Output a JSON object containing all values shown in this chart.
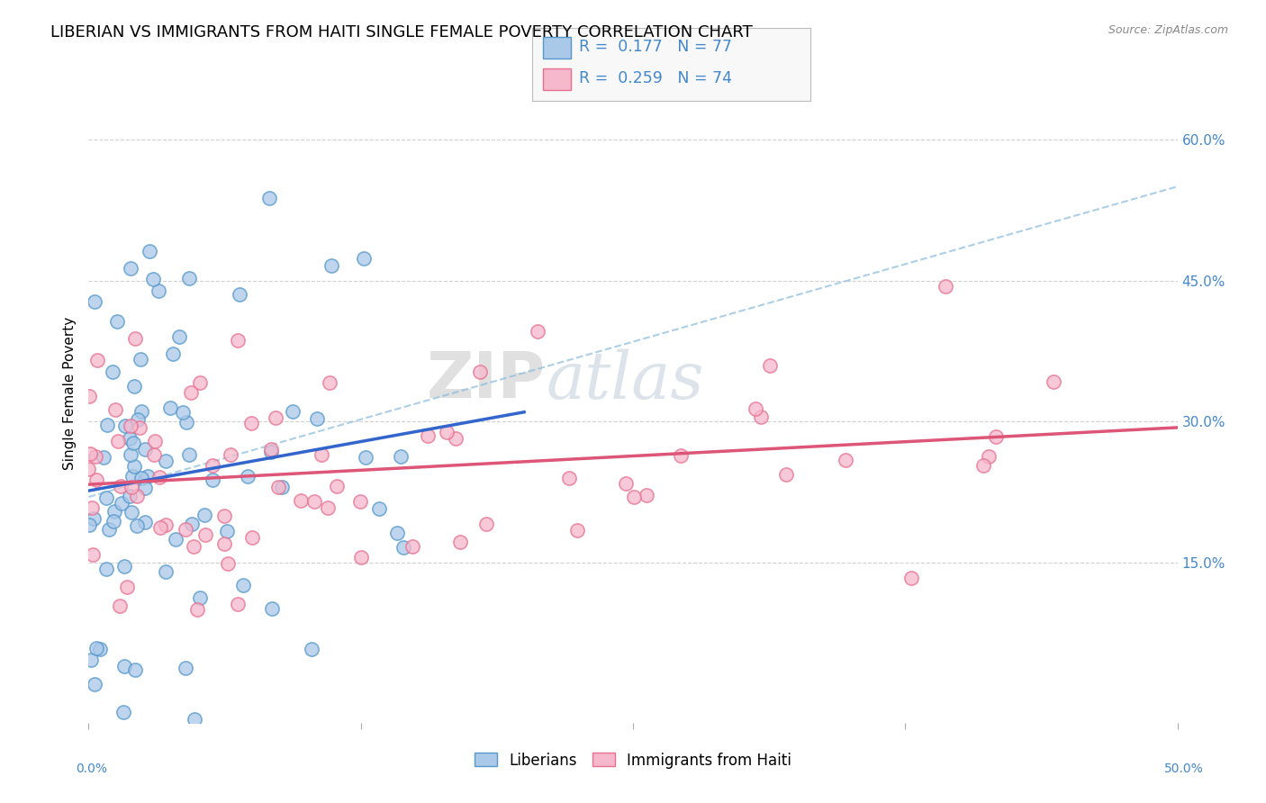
{
  "title": "LIBERIAN VS IMMIGRANTS FROM HAITI SINGLE FEMALE POVERTY CORRELATION CHART",
  "source": "Source: ZipAtlas.com",
  "ylabel": "Single Female Poverty",
  "ytick_vals": [
    15,
    30,
    45,
    60
  ],
  "xlim": [
    0,
    50
  ],
  "ylim": [
    -2,
    68
  ],
  "liberian_color": "#aac8e8",
  "liberian_edge": "#5599cc",
  "haiti_color": "#f5b8cc",
  "haiti_edge": "#e87090",
  "liberian_line_color": "#3366cc",
  "haiti_line_color": "#dd5577",
  "dashed_line_color": "#88bbdd",
  "liberian_R": 0.177,
  "liberian_N": 77,
  "haiti_R": 0.259,
  "haiti_N": 74,
  "legend_label_1": "Liberians",
  "legend_label_2": "Immigrants from Haiti",
  "watermark_zip": "ZIP",
  "watermark_atlas": "atlas",
  "background_color": "#ffffff",
  "grid_color": "#cccccc",
  "title_fontsize": 13,
  "axis_fontsize": 11,
  "legend_fontsize": 13,
  "right_tick_color": "#4488cc"
}
